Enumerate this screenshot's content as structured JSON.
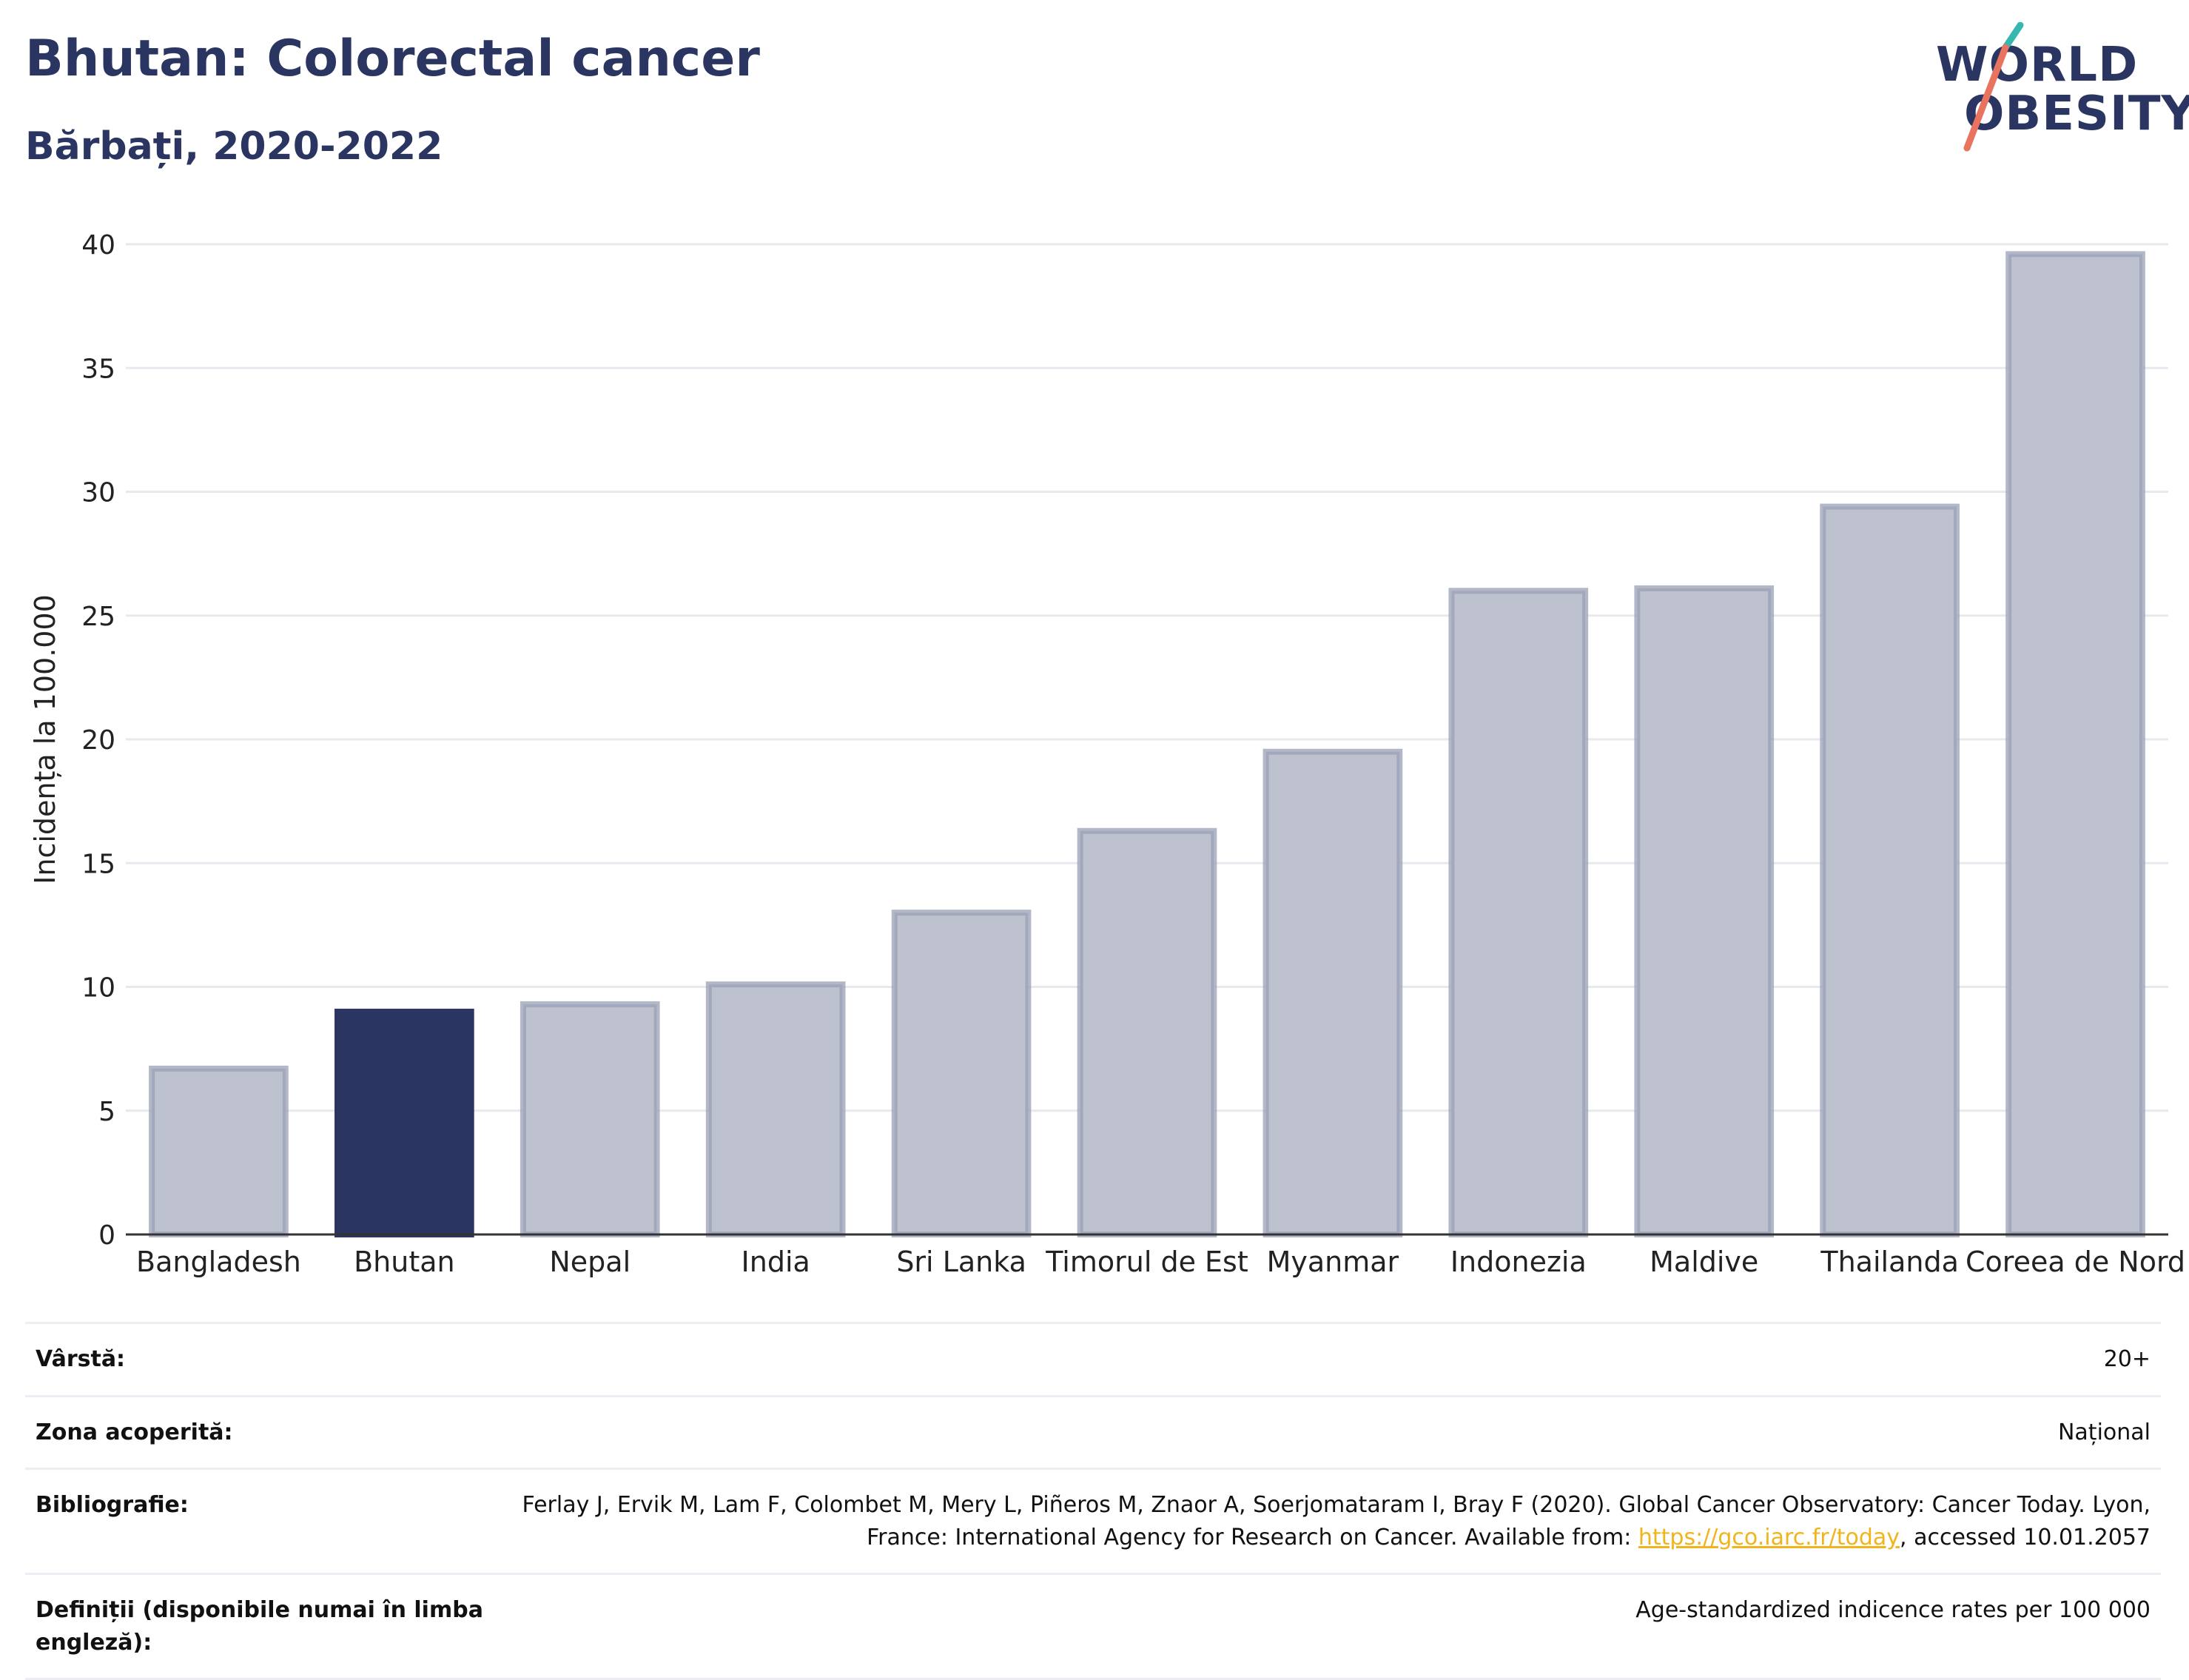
{
  "header": {
    "title": "Bhutan: Colorectal cancer",
    "subtitle": "Bărbați, 2020-2022"
  },
  "logo": {
    "line1": "WORLD",
    "line2": "OBESITY",
    "colors": {
      "text": "#2b3561",
      "slash_top": "#37b7b0",
      "slash_bottom": "#e8735f"
    }
  },
  "colors": {
    "highlight_bar": "#2b3561",
    "other_bar_fill": "#bec1ce",
    "other_bar_stroke": "#9aa0b6",
    "grid": "#e8e9ee",
    "axis": "#333333"
  },
  "chart_data": {
    "type": "bar",
    "title": "",
    "ylabel": "Incidența la 100.000",
    "xlabel": "",
    "ylim": [
      0,
      40
    ],
    "yticks": [
      0,
      5,
      10,
      15,
      20,
      25,
      30,
      35,
      40
    ],
    "grid": true,
    "highlight": "Bhutan",
    "categories": [
      "Bangladesh",
      "Bhutan",
      "Nepal",
      "India",
      "Sri Lanka",
      "Timorul de Est",
      "Myanmar",
      "Indonezia",
      "Maldive",
      "Thailanda",
      "Coreea de Nord"
    ],
    "values": [
      6.7,
      9.0,
      9.3,
      10.1,
      13.0,
      16.3,
      19.5,
      26.0,
      26.1,
      29.4,
      39.6
    ]
  },
  "meta": {
    "age_label": "Vârstă:",
    "age_value": "20+",
    "coverage_label": "Zona acoperită:",
    "coverage_value": "Național",
    "biblio_label": "Bibliografie:",
    "biblio_text": "Ferlay J, Ervik M, Lam F, Colombet M, Mery L, Piñeros M, Znaor A, Soerjomataram I, Bray F (2020). Global Cancer Observatory: Cancer Today. Lyon, France: International Agency for Research on Cancer. Available from: ",
    "biblio_link": "https://gco.iarc.fr/today",
    "biblio_suffix": ", accessed 10.01.2057",
    "def_label": "Definiții (disponibile numai în limba engleză):",
    "def_value": "Age-standardized indicence rates per 100 000"
  }
}
